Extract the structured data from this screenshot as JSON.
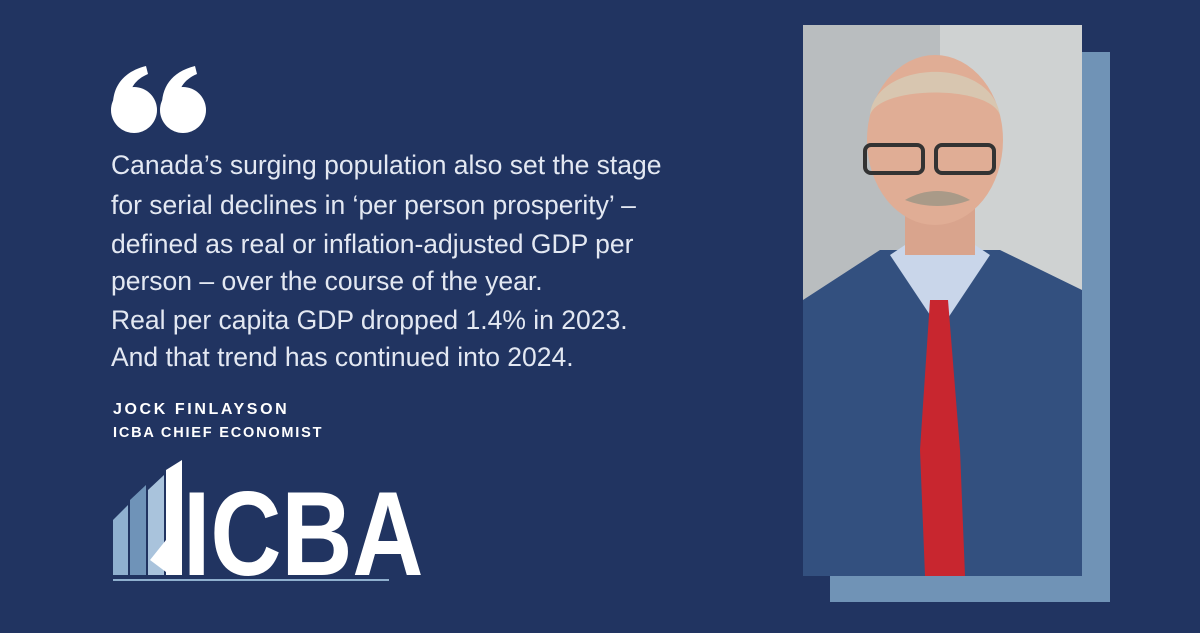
{
  "quote": {
    "lines": [
      "Canada’s surging population also set the stage",
      "for serial declines in ‘per person prosperity’ –",
      "defined as real or inflation-adjusted GDP per",
      "person – over the course of the year.",
      "Real per capita GDP dropped 1.4% in 2023.",
      "And that trend has continued into 2024."
    ]
  },
  "author": {
    "name": "JOCK FINLAYSON",
    "title": "ICBA CHIEF ECONOMIST"
  },
  "logo": {
    "text": "ICBA"
  }
}
